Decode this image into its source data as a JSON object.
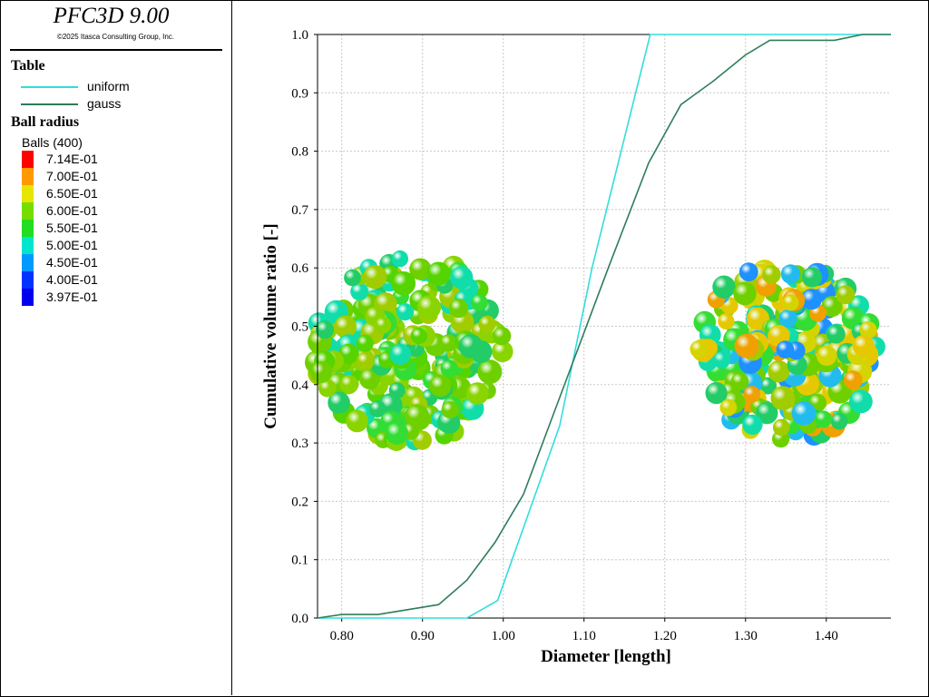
{
  "app": {
    "title": "PFC3D 9.00",
    "copyright": "©2025 Itasca Consulting Group, Inc."
  },
  "legend": {
    "table_title": "Table",
    "table_entries": [
      {
        "label": "uniform",
        "color": "#33dddd"
      },
      {
        "label": "gauss",
        "color": "#2e7d5a"
      }
    ],
    "ball_title": "Ball radius",
    "balls_count": "Balls (400)",
    "scale": [
      {
        "label": "7.14E-01",
        "color": "#ff0000"
      },
      {
        "label": "7.00E-01",
        "color": "#ff9900"
      },
      {
        "label": "6.50E-01",
        "color": "#e6e600"
      },
      {
        "label": "6.00E-01",
        "color": "#77dd00"
      },
      {
        "label": "5.50E-01",
        "color": "#22dd22"
      },
      {
        "label": "5.00E-01",
        "color": "#00e6cc"
      },
      {
        "label": "4.50E-01",
        "color": "#0099ff"
      },
      {
        "label": "4.00E-01",
        "color": "#0033ff"
      },
      {
        "label": "3.97E-01",
        "color": "#0000ee"
      }
    ]
  },
  "chart_data": {
    "type": "line",
    "xlabel": "Diameter [length]",
    "ylabel": "Cumulative volume ratio [-]",
    "xlim": [
      0.77,
      1.48
    ],
    "ylim": [
      0.0,
      1.0
    ],
    "xticks": [
      "0.80",
      "0.90",
      "1.00",
      "1.10",
      "1.20",
      "1.30",
      "1.40"
    ],
    "yticks": [
      "0.0",
      "0.1",
      "0.2",
      "0.3",
      "0.4",
      "0.5",
      "0.6",
      "0.7",
      "0.8",
      "0.9",
      "1.0"
    ],
    "grid": true,
    "series": [
      {
        "name": "uniform",
        "color": "#33dddd",
        "x": [
          0.77,
          0.955,
          0.993,
          1.07,
          1.11,
          1.182,
          1.48
        ],
        "y": [
          0.0,
          0.0,
          0.03,
          0.33,
          0.6,
          1.0,
          1.0
        ]
      },
      {
        "name": "gauss",
        "color": "#2e7d5a",
        "x": [
          0.77,
          0.8,
          0.845,
          0.92,
          0.955,
          0.99,
          1.025,
          1.065,
          1.13,
          1.18,
          1.22,
          1.26,
          1.3,
          1.33,
          1.41,
          1.445,
          1.48
        ],
        "y": [
          0.0,
          0.006,
          0.006,
          0.023,
          0.065,
          0.13,
          0.212,
          0.36,
          0.6,
          0.78,
          0.88,
          0.92,
          0.965,
          0.99,
          0.99,
          1.0,
          1.0
        ]
      }
    ],
    "ball_clusters": [
      {
        "name": "uniform",
        "palette": [
          "#6fd000",
          "#8ad400",
          "#a0cc00",
          "#33dd33",
          "#22cc66",
          "#11ddaa",
          "#55d400"
        ]
      },
      {
        "name": "gauss",
        "palette": [
          "#6fd000",
          "#a0cc00",
          "#d4d400",
          "#e6c800",
          "#22cc66",
          "#11ddaa",
          "#22bbee",
          "#1e90ff",
          "#f0a000",
          "#33dd33"
        ]
      }
    ]
  }
}
